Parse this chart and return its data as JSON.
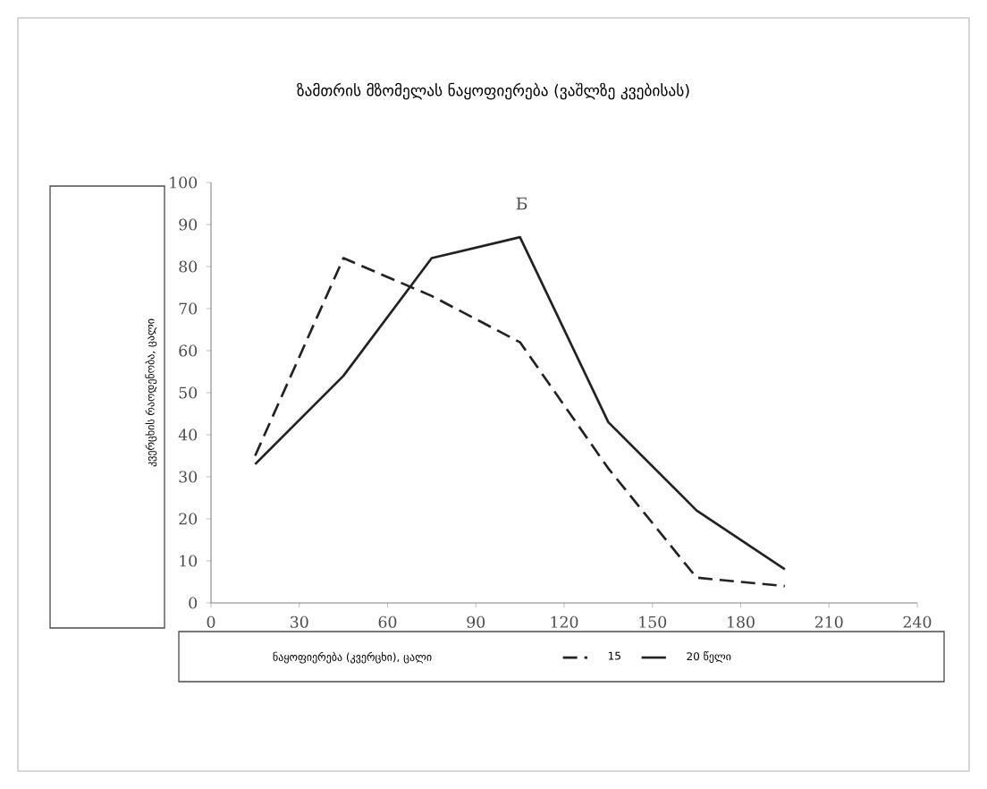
{
  "chart_data": {
    "type": "line",
    "title": "ზამთრის მზომელას ნაყოფიერება (ვაშლზე კვებისას)",
    "xlabel": "ნაყოფიერება (კვერცხი), ცალი",
    "ylabel": "კვერცხის რაოდენობა, ცალი",
    "annotations": [
      "Б"
    ],
    "x": [
      15,
      45,
      75,
      105,
      135,
      165,
      195
    ],
    "series": [
      {
        "name": "15",
        "color": "#222222",
        "line_style": "dashed",
        "values": [
          35,
          82,
          73,
          62,
          32,
          6,
          4
        ]
      },
      {
        "name": "20 წელი",
        "color": "#222222",
        "line_style": "solid",
        "values": [
          33,
          54,
          82,
          87,
          43,
          22,
          8
        ]
      }
    ],
    "xlim": [
      0,
      240
    ],
    "xticks": [
      0,
      30,
      60,
      90,
      120,
      150,
      180,
      210,
      240
    ],
    "ylim": [
      0,
      100
    ],
    "yticks": [
      0,
      10,
      20,
      30,
      40,
      50,
      60,
      70,
      80,
      90,
      100
    ],
    "legend": "bottom",
    "grid": false,
    "marker": "none"
  }
}
